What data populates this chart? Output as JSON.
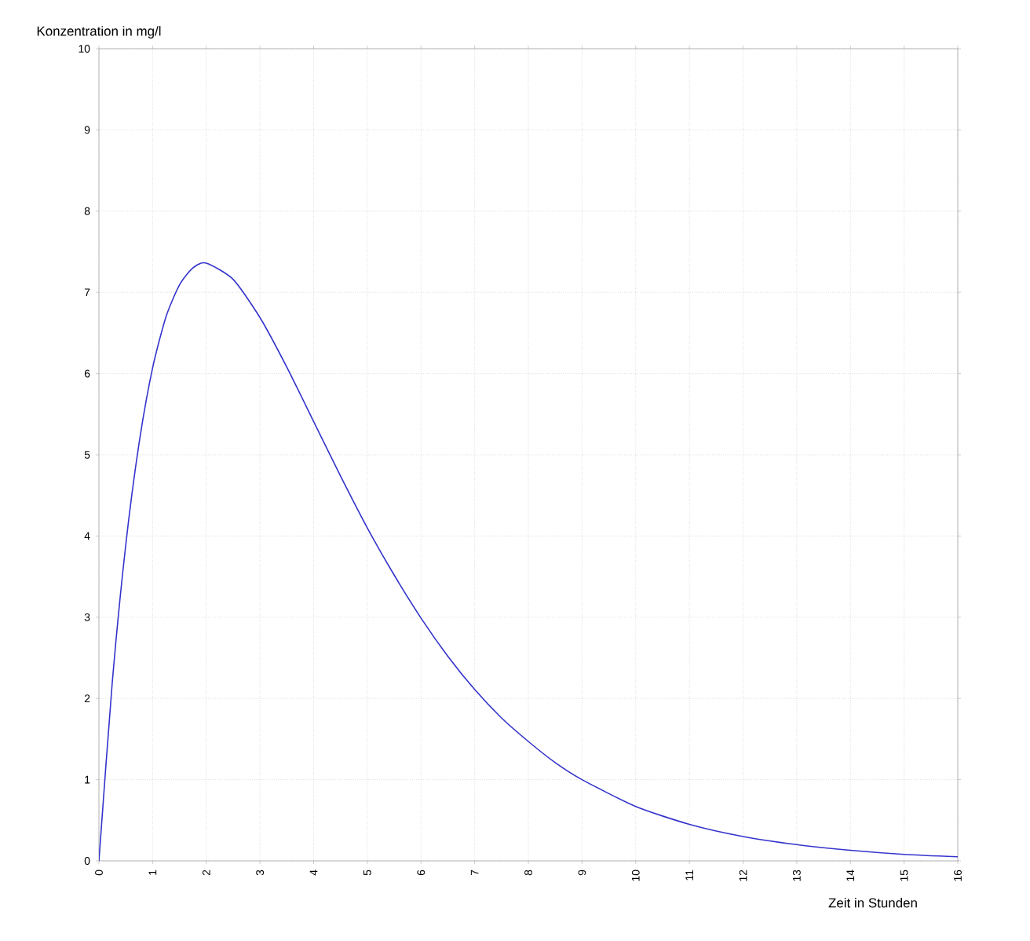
{
  "chart_data": {
    "type": "line",
    "xlabel": "Zeit in Stunden",
    "ylabel": "Konzentration in mg/l",
    "x": [
      0,
      0.25,
      0.5,
      0.75,
      1,
      1.25,
      1.5,
      1.75,
      2,
      2.5,
      3,
      3.5,
      4,
      4.5,
      5,
      5.5,
      6,
      6.5,
      7,
      7.5,
      8,
      8.5,
      9,
      10,
      11,
      12,
      13,
      14,
      15,
      16
    ],
    "series": [
      {
        "color": "#3333cc",
        "values": [
          0,
          2.21,
          3.89,
          5.15,
          6.07,
          6.7,
          7.09,
          7.3,
          7.36,
          7.16,
          6.69,
          6.08,
          5.41,
          4.74,
          4.1,
          3.52,
          2.99,
          2.52,
          2.11,
          1.76,
          1.47,
          1.21,
          1.0,
          0.67,
          0.45,
          0.3,
          0.2,
          0.13,
          0.08,
          0.05
        ]
      }
    ],
    "xlim": [
      0,
      16
    ],
    "ylim": [
      0,
      10
    ],
    "xticks": [
      0,
      1,
      2,
      3,
      4,
      5,
      6,
      7,
      8,
      9,
      10,
      11,
      12,
      13,
      14,
      15,
      16
    ],
    "yticks": [
      0,
      1,
      2,
      3,
      4,
      5,
      6,
      7,
      8,
      9,
      10
    ],
    "grid": true,
    "marker": "none",
    "line_style": "solid"
  }
}
